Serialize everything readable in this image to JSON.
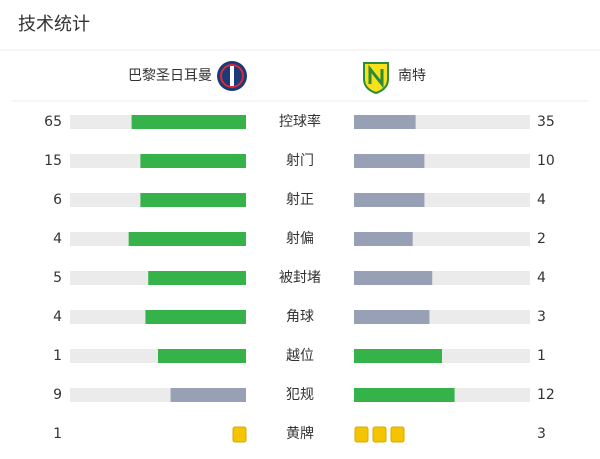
{
  "header": {
    "title": "技术统计"
  },
  "teams": [
    {
      "name": "巴黎圣日耳曼"
    },
    {
      "name": "南特"
    }
  ],
  "colors": {
    "lead": "#35b24a",
    "trail": "#97a0b4",
    "track": "#ebebeb"
  },
  "stats": [
    {
      "label": "控球率",
      "values": [
        65,
        35
      ]
    },
    {
      "label": "射门",
      "values": [
        15,
        10
      ]
    },
    {
      "label": "射正",
      "values": [
        6,
        4
      ]
    },
    {
      "label": "射偏",
      "values": [
        4,
        2
      ]
    },
    {
      "label": "被封堵",
      "values": [
        5,
        4
      ]
    },
    {
      "label": "角球",
      "values": [
        4,
        3
      ]
    },
    {
      "label": "越位",
      "values": [
        1,
        1
      ]
    },
    {
      "label": "犯规",
      "values": [
        9,
        12
      ]
    }
  ],
  "cards": {
    "label": "黄牌",
    "values": [
      1,
      3
    ],
    "color": "#f5c400"
  }
}
